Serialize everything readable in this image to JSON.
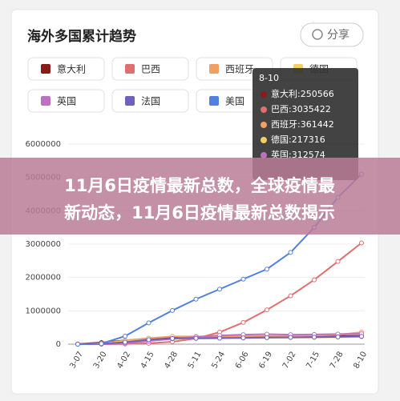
{
  "chart_data": {
    "type": "line",
    "title": "海外多国累计趋势",
    "share": "分享",
    "categories": [
      "3-07",
      "3-20",
      "4-02",
      "4-15",
      "4-28",
      "5-11",
      "5-24",
      "6-06",
      "6-19",
      "7-02",
      "7-15",
      "7-28",
      "8-10"
    ],
    "ylim": [
      0,
      6000000
    ],
    "yticks": [
      0,
      1000000,
      2000000,
      3000000,
      4000000,
      5000000,
      6000000
    ],
    "grid": true,
    "series": [
      {
        "name": "意大利",
        "color": "#8b1a1a",
        "values": [
          5800,
          47000,
          115000,
          165000,
          200000,
          220000,
          230000,
          234000,
          238000,
          241000,
          243000,
          246000,
          250566
        ]
      },
      {
        "name": "巴西",
        "color": "#e07070",
        "values": [
          0,
          0,
          7000,
          28000,
          72000,
          170000,
          360000,
          650000,
          1030000,
          1450000,
          1930000,
          2480000,
          3035422
        ]
      },
      {
        "name": "西班牙",
        "color": "#f0a060",
        "values": [
          0,
          20000,
          110000,
          180000,
          230000,
          230000,
          235000,
          240000,
          245000,
          250000,
          258000,
          280000,
          361442
        ]
      },
      {
        "name": "德国",
        "color": "#f5d060",
        "values": [
          800,
          20000,
          80000,
          130000,
          160000,
          172000,
          180000,
          185000,
          190000,
          196000,
          200000,
          207000,
          217316
        ]
      },
      {
        "name": "英国",
        "color": "#c070c0",
        "values": [
          200,
          4000,
          34000,
          94000,
          160000,
          220000,
          260000,
          285000,
          300000,
          284000,
          292000,
          302000,
          312574
        ]
      },
      {
        "name": "法国",
        "color": "#7060c0",
        "values": [
          1100,
          11000,
          60000,
          135000,
          170000,
          177000,
          180000,
          190000,
          198000,
          205000,
          210000,
          220000,
          235000
        ]
      },
      {
        "name": "美国",
        "color": "#5080e0",
        "values": [
          0,
          15000,
          240000,
          640000,
          1010000,
          1350000,
          1650000,
          1950000,
          2250000,
          2750000,
          3500000,
          4400000,
          5100000
        ]
      }
    ],
    "tooltip": {
      "title": "8-10",
      "items": [
        "意大利:250566",
        "巴西:3035422",
        "西班牙:361442",
        "德国:217316",
        "英国:312574"
      ]
    }
  },
  "banner": {
    "lines": [
      "11月6日疫情最新总数，全球疫情最",
      "新动态，11月6日疫情最新总数揭示"
    ]
  }
}
